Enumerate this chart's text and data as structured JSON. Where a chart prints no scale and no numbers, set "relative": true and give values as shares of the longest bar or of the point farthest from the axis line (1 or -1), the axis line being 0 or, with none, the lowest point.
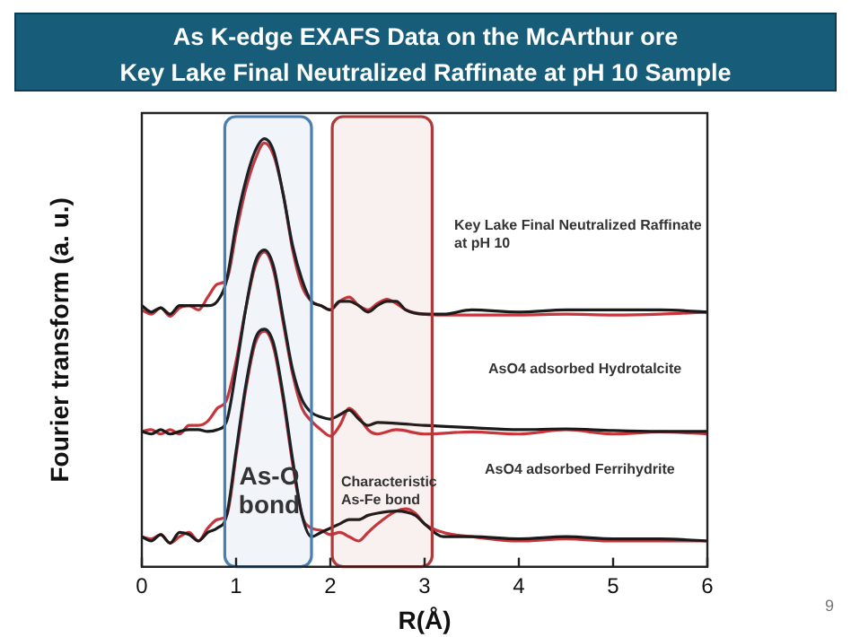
{
  "chart_data": {
    "type": "line",
    "title": "As K-edge EXAFS Data on the McArthur ore\nKey Lake Final Neutralized Raffinate at pH 10 Sample",
    "xlabel": "R(Å)",
    "ylabel": "Fourier transform (a. u.)",
    "relative": true,
    "xlim": [
      0,
      6
    ],
    "xticks": [
      0,
      1,
      2,
      3,
      4,
      5,
      6
    ],
    "grid": false,
    "legend": false,
    "marker": "none",
    "line_style": "solid",
    "series": [
      {
        "color": "#1a1a1a",
        "x": [
          0,
          0.1,
          0.2,
          0.3,
          0.4,
          0.5,
          0.6,
          0.7,
          0.8,
          0.9,
          1.0,
          1.1,
          1.2,
          1.3,
          1.4,
          1.5,
          1.6,
          1.7,
          1.8,
          1.9,
          2.0,
          2.1,
          2.2,
          2.3,
          2.4,
          2.5,
          2.6,
          2.7,
          2.8,
          3.0,
          3.2,
          3.5,
          4.0,
          4.5,
          5.0,
          5.5,
          6.0
        ],
        "values": [
          0.61,
          0.595,
          0.605,
          0.59,
          0.61,
          0.61,
          0.61,
          0.61,
          0.62,
          0.67,
          0.8,
          0.9,
          0.97,
          1.0,
          0.97,
          0.87,
          0.75,
          0.67,
          0.62,
          0.61,
          0.6,
          0.62,
          0.62,
          0.61,
          0.595,
          0.61,
          0.62,
          0.62,
          0.6,
          0.59,
          0.59,
          0.6,
          0.595,
          0.6,
          0.6,
          0.6,
          0.595
        ]
      },
      {
        "color": "#c8353a",
        "x": [
          0,
          0.1,
          0.2,
          0.3,
          0.4,
          0.5,
          0.6,
          0.7,
          0.8,
          0.9,
          1.0,
          1.1,
          1.2,
          1.3,
          1.4,
          1.5,
          1.6,
          1.7,
          1.8,
          1.9,
          2.0,
          2.1,
          2.2,
          2.3,
          2.4,
          2.5,
          2.6,
          2.7,
          2.8,
          3.0,
          3.2,
          3.5,
          4.0,
          4.5,
          5.0,
          5.5,
          6.0
        ],
        "values": [
          0.6,
          0.59,
          0.605,
          0.585,
          0.605,
          0.61,
          0.6,
          0.63,
          0.66,
          0.67,
          0.78,
          0.88,
          0.95,
          0.99,
          0.96,
          0.87,
          0.74,
          0.655,
          0.62,
          0.61,
          0.6,
          0.62,
          0.63,
          0.61,
          0.6,
          0.615,
          0.625,
          0.615,
          0.6,
          0.59,
          0.588,
          0.588,
          0.588,
          0.59,
          0.588,
          0.59,
          0.595
        ]
      },
      {
        "color": "#1a1a1a",
        "x": [
          0,
          0.1,
          0.2,
          0.3,
          0.4,
          0.5,
          0.6,
          0.7,
          0.8,
          0.9,
          1.0,
          1.1,
          1.2,
          1.3,
          1.4,
          1.5,
          1.6,
          1.7,
          1.8,
          1.9,
          2.0,
          2.1,
          2.2,
          2.3,
          2.4,
          2.5,
          2.7,
          3.0,
          3.5,
          4.0,
          4.5,
          5.0,
          5.5,
          6.0
        ],
        "values": [
          0.316,
          0.31,
          0.32,
          0.31,
          0.316,
          0.32,
          0.32,
          0.316,
          0.32,
          0.34,
          0.46,
          0.6,
          0.71,
          0.74,
          0.7,
          0.58,
          0.46,
          0.39,
          0.36,
          0.35,
          0.345,
          0.355,
          0.366,
          0.345,
          0.33,
          0.337,
          0.335,
          0.33,
          0.325,
          0.32,
          0.322,
          0.318,
          0.316,
          0.316
        ]
      },
      {
        "color": "#c8353a",
        "x": [
          0,
          0.1,
          0.2,
          0.3,
          0.4,
          0.5,
          0.6,
          0.7,
          0.8,
          0.9,
          1.0,
          1.1,
          1.2,
          1.3,
          1.4,
          1.5,
          1.6,
          1.7,
          1.8,
          1.9,
          2.0,
          2.1,
          2.2,
          2.3,
          2.4,
          2.5,
          2.7,
          3.0,
          3.5,
          4.0,
          4.5,
          5.0,
          5.5,
          6.0
        ],
        "values": [
          0.316,
          0.32,
          0.31,
          0.32,
          0.31,
          0.33,
          0.33,
          0.34,
          0.37,
          0.39,
          0.48,
          0.6,
          0.7,
          0.735,
          0.69,
          0.57,
          0.45,
          0.37,
          0.34,
          0.32,
          0.305,
          0.33,
          0.37,
          0.35,
          0.32,
          0.31,
          0.32,
          0.31,
          0.315,
          0.31,
          0.32,
          0.31,
          0.315,
          0.31
        ]
      },
      {
        "color": "#1a1a1a",
        "x": [
          0,
          0.1,
          0.2,
          0.3,
          0.4,
          0.5,
          0.6,
          0.7,
          0.8,
          0.9,
          1.0,
          1.1,
          1.2,
          1.3,
          1.4,
          1.5,
          1.6,
          1.7,
          1.8,
          1.9,
          2.0,
          2.1,
          2.2,
          2.3,
          2.4,
          2.5,
          2.7,
          2.9,
          3.0,
          3.2,
          3.5,
          4.0,
          4.5,
          5.0,
          5.5,
          6.0
        ],
        "values": [
          0.07,
          0.06,
          0.075,
          0.055,
          0.08,
          0.075,
          0.06,
          0.08,
          0.09,
          0.12,
          0.27,
          0.42,
          0.53,
          0.555,
          0.52,
          0.4,
          0.25,
          0.12,
          0.07,
          0.08,
          0.09,
          0.1,
          0.11,
          0.11,
          0.12,
          0.125,
          0.13,
          0.12,
          0.1,
          0.07,
          0.07,
          0.065,
          0.07,
          0.065,
          0.065,
          0.06
        ]
      },
      {
        "color": "#c8353a",
        "x": [
          0,
          0.1,
          0.2,
          0.3,
          0.4,
          0.5,
          0.6,
          0.7,
          0.8,
          0.9,
          1.0,
          1.1,
          1.2,
          1.3,
          1.4,
          1.5,
          1.6,
          1.7,
          1.8,
          1.9,
          2.0,
          2.1,
          2.2,
          2.3,
          2.4,
          2.5,
          2.7,
          2.8,
          2.9,
          3.0,
          3.2,
          3.5,
          4.0,
          4.5,
          5.0,
          5.5,
          6.0
        ],
        "values": [
          0.07,
          0.065,
          0.075,
          0.055,
          0.07,
          0.08,
          0.06,
          0.09,
          0.11,
          0.12,
          0.26,
          0.41,
          0.52,
          0.55,
          0.51,
          0.39,
          0.24,
          0.12,
          0.09,
          0.085,
          0.075,
          0.08,
          0.07,
          0.06,
          0.08,
          0.1,
          0.13,
          0.135,
          0.125,
          0.1,
          0.08,
          0.07,
          0.06,
          0.065,
          0.06,
          0.06,
          0.06
        ]
      }
    ],
    "bands": [
      {
        "axis": "x",
        "from": 0.88,
        "to": 1.8,
        "color": "#4a7fb5"
      },
      {
        "axis": "x",
        "from": 2.02,
        "to": 3.08,
        "color": "#b03a3a"
      }
    ],
    "annotations": [
      "Key Lake Final Neutralized Raffinate\nat pH 10",
      "AsO4 adsorbed Hydrotalcite",
      "AsO4 adsorbed Ferrihydrite",
      "As-O\nbond",
      "Characteristic\nAs-Fe bond",
      "9"
    ]
  }
}
